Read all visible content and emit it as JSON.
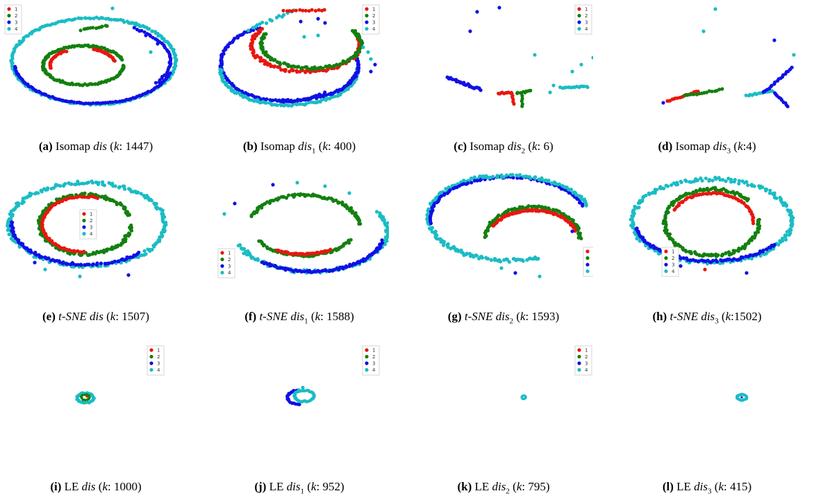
{
  "colors": {
    "1": "#e8170f",
    "2": "#12800f",
    "3": "#1010e6",
    "4": "#1bbcc4"
  },
  "legend_entries": [
    "1",
    "2",
    "3",
    "4"
  ],
  "chart_data": [
    {
      "type": "scatter",
      "panel": "a",
      "caption": {
        "label": "(a)",
        "method": "Isomap",
        "measure": "dis",
        "sub": "",
        "k_sep": ": ",
        "k": "1447"
      },
      "layout_shape": "spiral-inner-outer"
    },
    {
      "type": "scatter",
      "panel": "b",
      "caption": {
        "label": "(b)",
        "method": "Isomap",
        "measure": "dis",
        "sub": "1",
        "k_sep": ": ",
        "k": "400"
      },
      "layout_shape": "spiral-broad"
    },
    {
      "type": "scatter",
      "panel": "c",
      "caption": {
        "label": "(c)",
        "method": "Isomap",
        "measure": "dis",
        "sub": "2",
        "k_sep": ": ",
        "k": "6"
      },
      "layout_shape": "sparse-lines"
    },
    {
      "type": "scatter",
      "panel": "d",
      "caption": {
        "label": "(d)",
        "method": "Isomap",
        "measure": "dis",
        "sub": "3",
        "k_sep": ":",
        "k": "4"
      },
      "layout_shape": "branches"
    },
    {
      "type": "scatter",
      "panel": "e",
      "caption": {
        "label": "(e)",
        "method": "t-SNE",
        "measure": "dis",
        "sub": "",
        "k_sep": ": ",
        "k": "1507"
      },
      "layout_shape": "spiral-tsne"
    },
    {
      "type": "scatter",
      "panel": "f",
      "caption": {
        "label": "(f)",
        "method": "t-SNE",
        "measure": "dis",
        "sub": "1",
        "k_sep": ": ",
        "k": "1588"
      },
      "layout_shape": "spiral-tsne"
    },
    {
      "type": "scatter",
      "panel": "g",
      "caption": {
        "label": "(g)",
        "method": "t-SNE",
        "measure": "dis",
        "sub": "2",
        "k_sep": ": ",
        "k": "1593"
      },
      "layout_shape": "spiral-tsne"
    },
    {
      "type": "scatter",
      "panel": "h",
      "caption": {
        "label": "(h)",
        "method": "t-SNE",
        "measure": "dis",
        "sub": "3",
        "k_sep": ":",
        "k": "1502"
      },
      "layout_shape": "spiral-tsne"
    },
    {
      "type": "scatter",
      "panel": "i",
      "caption": {
        "label": "(i)",
        "method": "LE",
        "measure": "dis",
        "sub": "",
        "k_sep": ": ",
        "k": "1000"
      },
      "layout_shape": "tiny-ring"
    },
    {
      "type": "scatter",
      "panel": "j",
      "caption": {
        "label": "(j)",
        "method": "LE",
        "measure": "dis",
        "sub": "1",
        "k_sep": ": ",
        "k": "952"
      },
      "layout_shape": "tiny-ring"
    },
    {
      "type": "scatter",
      "panel": "k",
      "caption": {
        "label": "(k)",
        "method": "LE",
        "measure": "dis",
        "sub": "2",
        "k_sep": ": ",
        "k": "795"
      },
      "layout_shape": "dot"
    },
    {
      "type": "scatter",
      "panel": "l",
      "caption": {
        "label": "(l)",
        "method": "LE",
        "measure": "dis",
        "sub": "3",
        "k_sep": ": ",
        "k": "415"
      },
      "layout_shape": "dot"
    }
  ]
}
